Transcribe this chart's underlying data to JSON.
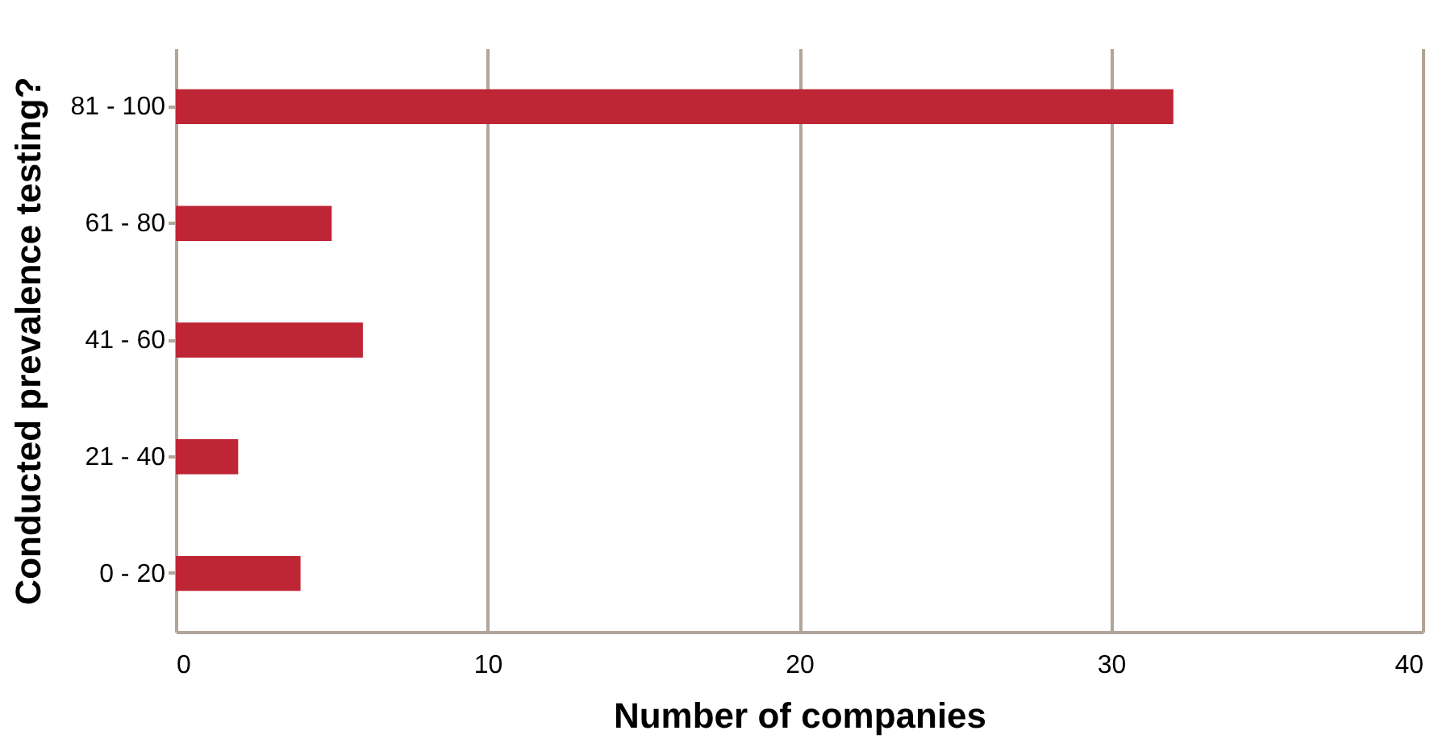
{
  "chart_data": {
    "type": "bar",
    "orientation": "horizontal",
    "xlabel": "Number of companies",
    "ylabel": "Conducted prevalence testing?",
    "categories": [
      "81 - 100",
      "61 - 80",
      "41 - 60",
      "21 - 40",
      "0 - 20"
    ],
    "values": [
      32,
      5,
      6,
      2,
      4
    ],
    "color": "#be2535",
    "xlim": [
      0,
      40
    ],
    "xticks": [
      0,
      10,
      20,
      30,
      40
    ],
    "grid": "x"
  }
}
